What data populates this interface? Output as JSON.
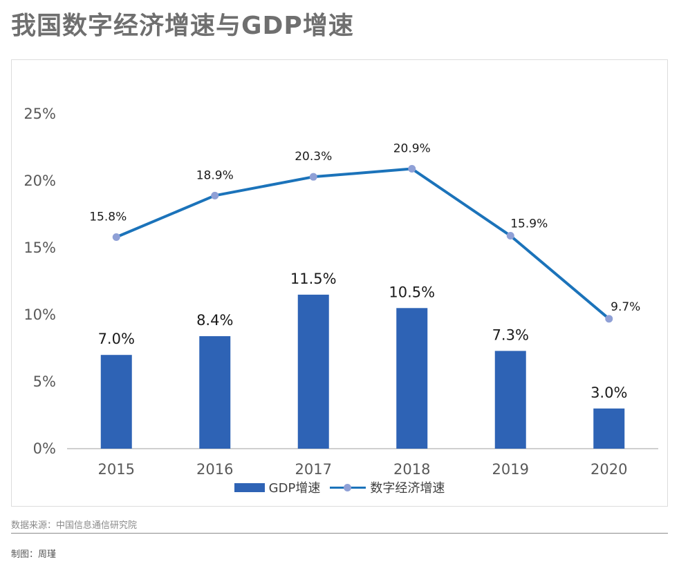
{
  "title": "我国数字经济增速与GDP增速",
  "footer": {
    "source": "数据来源：中国信息通信研究院",
    "maker": "制图：周瑾"
  },
  "colors": {
    "bar": "#2e63b5",
    "line": "#1b73ba",
    "marker": "#8fa0d6",
    "axis_text": "#595959",
    "axis_line": "#bfbfbf"
  },
  "chart_data": {
    "type": "bar",
    "categories": [
      "2015",
      "2016",
      "2017",
      "2018",
      "2019",
      "2020"
    ],
    "series": [
      {
        "name": "GDP增速",
        "type": "bar",
        "values": [
          7.0,
          8.4,
          11.5,
          10.5,
          7.3,
          3.0
        ],
        "labels": [
          "7.0%",
          "8.4%",
          "11.5%",
          "10.5%",
          "7.3%",
          "3.0%"
        ]
      },
      {
        "name": "数字经济增速",
        "type": "line",
        "values": [
          15.8,
          18.9,
          20.3,
          20.9,
          15.9,
          9.7
        ],
        "labels": [
          "15.8%",
          "18.9%",
          "20.3%",
          "20.9%",
          "15.9%",
          "9.7%"
        ]
      }
    ],
    "ylim": [
      0,
      25
    ],
    "yticks": [
      0,
      5,
      10,
      15,
      20,
      25
    ],
    "ytick_labels": [
      "0%",
      "5%",
      "10%",
      "15%",
      "20%",
      "25%"
    ],
    "grid": false,
    "legend": "bottom"
  }
}
